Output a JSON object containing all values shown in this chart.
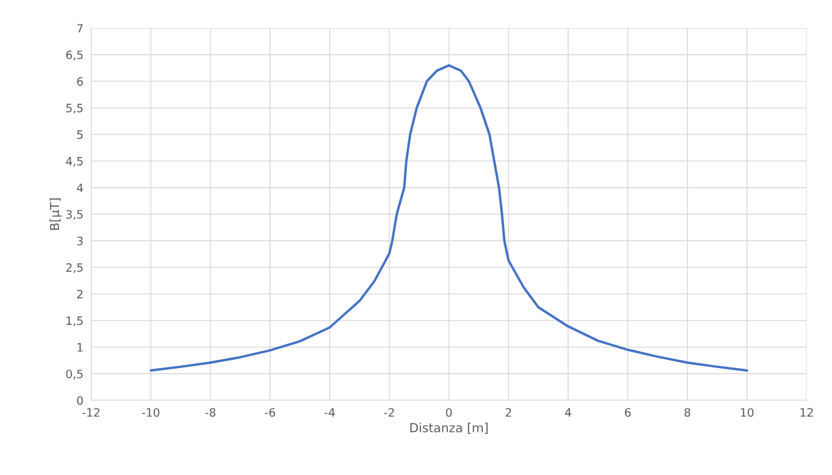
{
  "chart_data": {
    "type": "line",
    "xlabel": "Distanza [m]",
    "ylabel": "B[µT]",
    "x": [
      -10,
      -9,
      -8,
      -7,
      -6,
      -5,
      -4,
      -3,
      -2.5,
      -2,
      -1.9,
      -1.75,
      -1.5,
      -1.43,
      -1.3,
      -1.08,
      -0.74,
      -0.4,
      0,
      0.4,
      0.67,
      1.06,
      1.36,
      1.52,
      1.68,
      1.78,
      1.86,
      2,
      2.5,
      3,
      4,
      5,
      6,
      7,
      8,
      9,
      10
    ],
    "series": [
      {
        "color": "#4472c4",
        "values": [
          0.56,
          0.63,
          0.71,
          0.81,
          0.94,
          1.11,
          1.37,
          1.87,
          2.24,
          2.76,
          3.0,
          3.5,
          4.0,
          4.5,
          5.0,
          5.5,
          6.0,
          6.2,
          6.3,
          6.2,
          6.0,
          5.5,
          5.0,
          4.5,
          4.0,
          3.5,
          3.0,
          2.63,
          2.13,
          1.75,
          1.39,
          1.12,
          0.95,
          0.82,
          0.71,
          0.63,
          0.56
        ]
      }
    ],
    "xlim": [
      -12,
      12
    ],
    "xticks": [
      -12,
      -10,
      -8,
      -6,
      -4,
      -2,
      0,
      2,
      4,
      6,
      8,
      10,
      12
    ],
    "ylim": [
      0,
      7
    ],
    "yticks": [
      0,
      {
        "value": 0.5,
        "label": "0,5"
      },
      1,
      {
        "value": 1.5,
        "label": "1,5"
      },
      2,
      {
        "value": 2.5,
        "label": "2,5"
      },
      3,
      {
        "value": 3.5,
        "label": "3,5"
      },
      4,
      {
        "value": 4.5,
        "label": "4,5"
      },
      5,
      {
        "value": 5.5,
        "label": "5,5"
      },
      6,
      {
        "value": 6.5,
        "label": "6,5"
      },
      7
    ],
    "grid": true,
    "marker": "none",
    "line_style": "solid"
  }
}
